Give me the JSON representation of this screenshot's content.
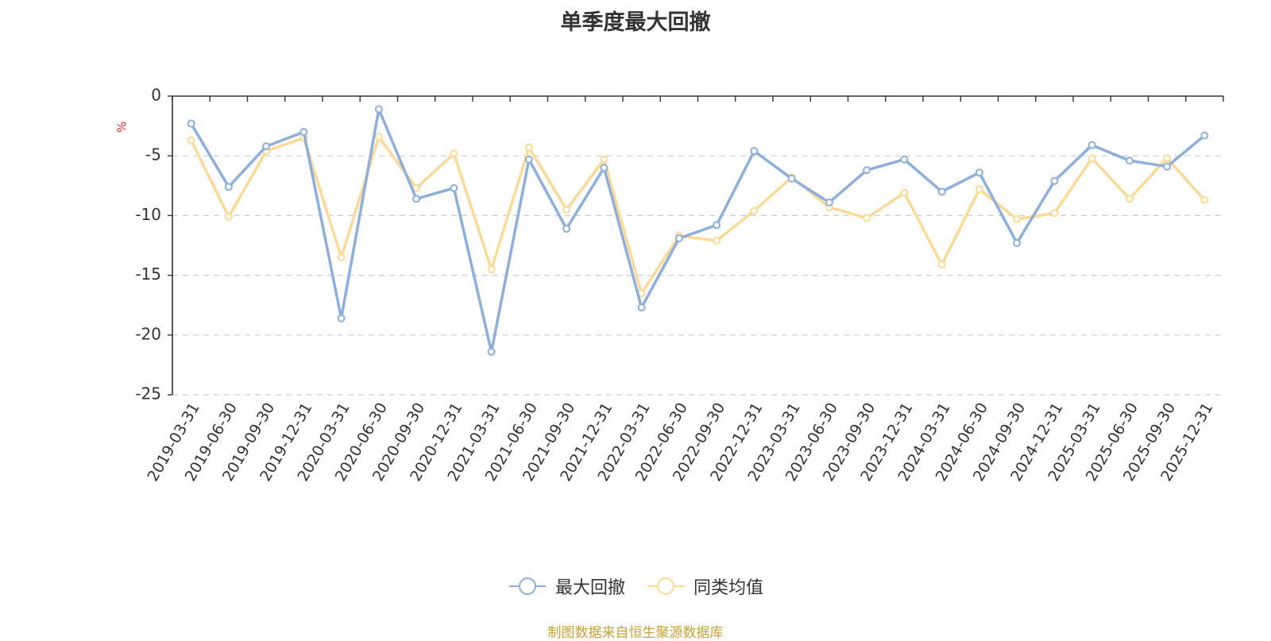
{
  "title": "单季度最大回撤",
  "source_note": "制图数据来自恒生聚源数据库",
  "chart_data": {
    "type": "line",
    "title": "单季度最大回撤",
    "ylabel": "%",
    "ylim": [
      -25,
      0
    ],
    "yticks": [
      0,
      -5,
      -10,
      -15,
      -20,
      -25
    ],
    "grid": true,
    "legend_position": "bottom-center",
    "categories": [
      "2019-03-31",
      "2019-06-30",
      "2019-09-30",
      "2019-12-31",
      "2020-03-31",
      "2020-06-30",
      "2020-09-30",
      "2020-12-31",
      "2021-03-31",
      "2021-06-30",
      "2021-09-30",
      "2021-12-31",
      "2022-03-31",
      "2022-06-30",
      "2022-09-30",
      "2022-12-31",
      "2023-03-31",
      "2023-06-30",
      "2023-09-30",
      "2023-12-31",
      "2024-03-31",
      "2024-06-30",
      "2024-09-30",
      "2024-12-31",
      "2025-03-31",
      "2025-06-30",
      "2025-09-30",
      "2025-12-31"
    ],
    "series": [
      {
        "name": "最大回撤",
        "color": "#8eaedc",
        "values": [
          -2.3,
          -7.6,
          -4.2,
          -3.0,
          -18.6,
          -1.1,
          -8.6,
          -7.7,
          -21.4,
          -5.3,
          -11.1,
          -6.0,
          -17.7,
          -11.9,
          -10.8,
          -4.6,
          -6.9,
          -8.9,
          -6.2,
          -5.3,
          -8.0,
          -6.4,
          -12.3,
          -7.1,
          -4.1,
          -5.4,
          -5.9,
          -3.3
        ]
      },
      {
        "name": "同类均值",
        "color": "#fcd997",
        "values": [
          -3.7,
          -10.1,
          -4.6,
          -3.5,
          -13.5,
          -3.4,
          -7.7,
          -4.8,
          -14.5,
          -4.3,
          -9.5,
          -5.3,
          -16.5,
          -11.7,
          -12.1,
          -9.6,
          -6.8,
          -9.3,
          -10.2,
          -8.1,
          -14.1,
          -7.8,
          -10.3,
          -9.8,
          -5.2,
          -8.6,
          -5.2,
          -8.7
        ]
      }
    ]
  }
}
